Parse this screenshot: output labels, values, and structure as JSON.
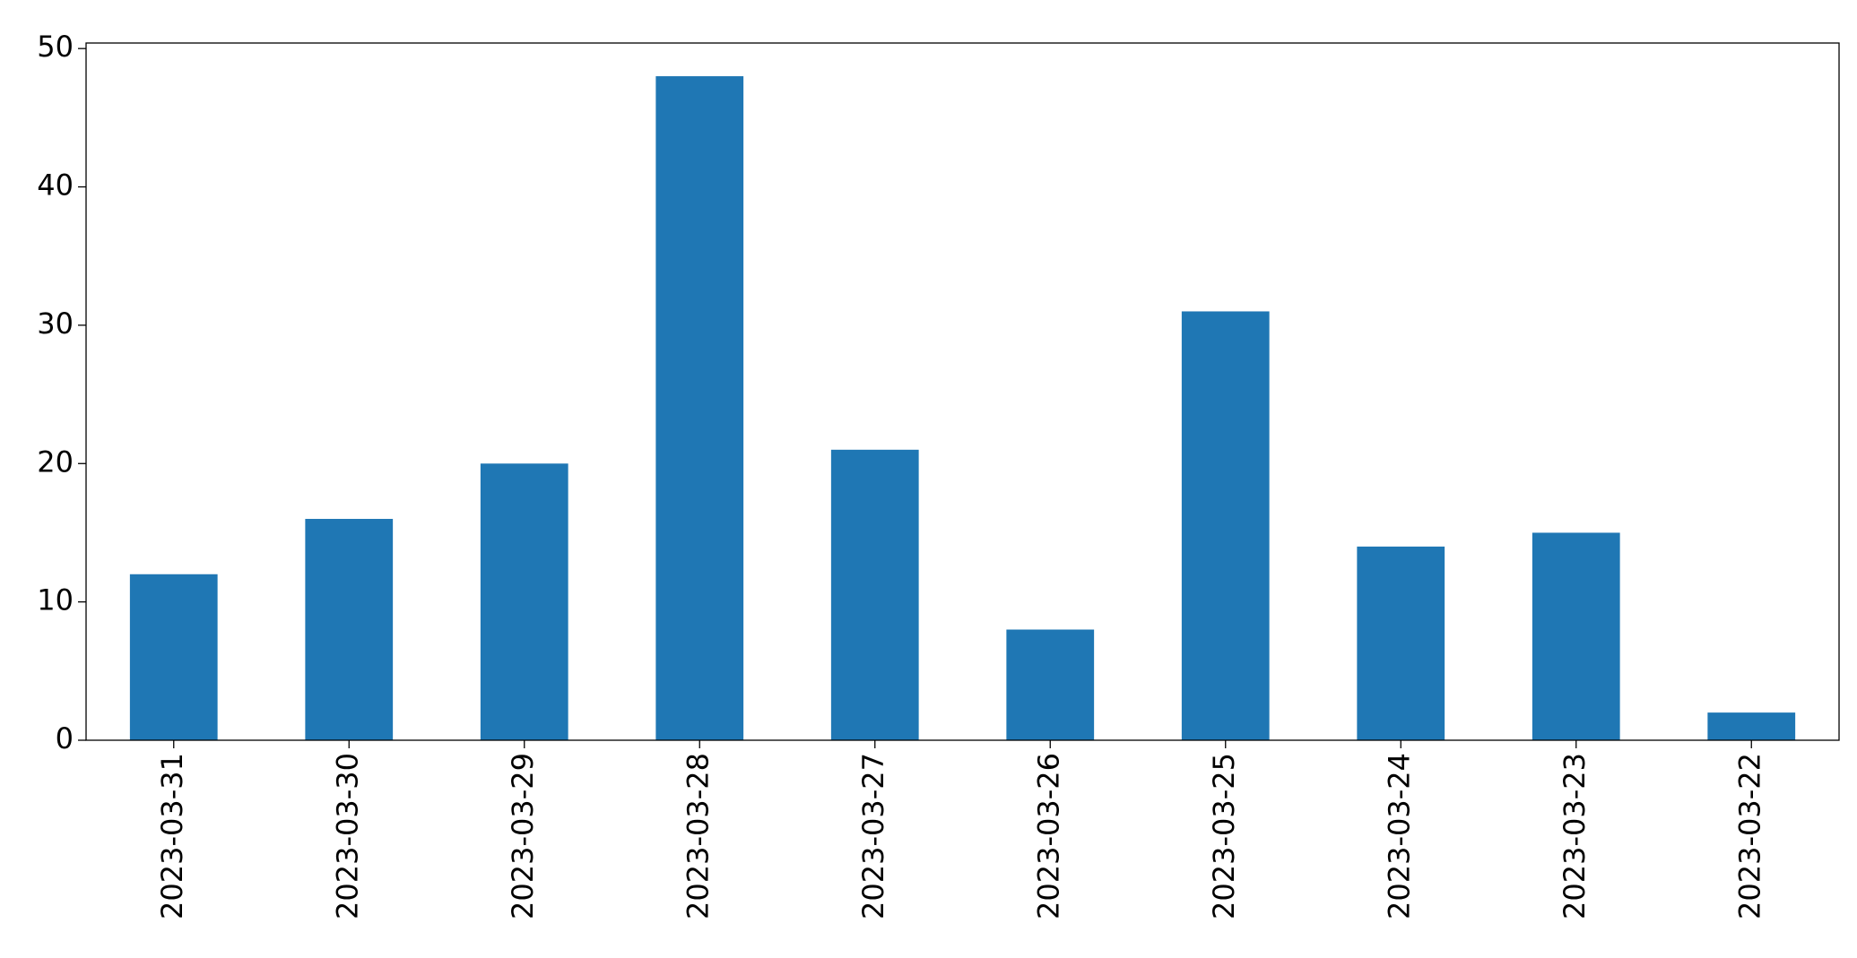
{
  "chart_data": {
    "type": "bar",
    "categories": [
      "2023-03-31",
      "2023-03-30",
      "2023-03-29",
      "2023-03-28",
      "2023-03-27",
      "2023-03-26",
      "2023-03-25",
      "2023-03-24",
      "2023-03-23",
      "2023-03-22"
    ],
    "values": [
      12,
      16,
      20,
      48,
      21,
      8,
      31,
      14,
      15,
      2
    ],
    "color": "#1f77b4",
    "ylim": [
      0,
      50.4
    ],
    "yticks": [
      0,
      10,
      20,
      30,
      40,
      50
    ],
    "grid": false
  }
}
